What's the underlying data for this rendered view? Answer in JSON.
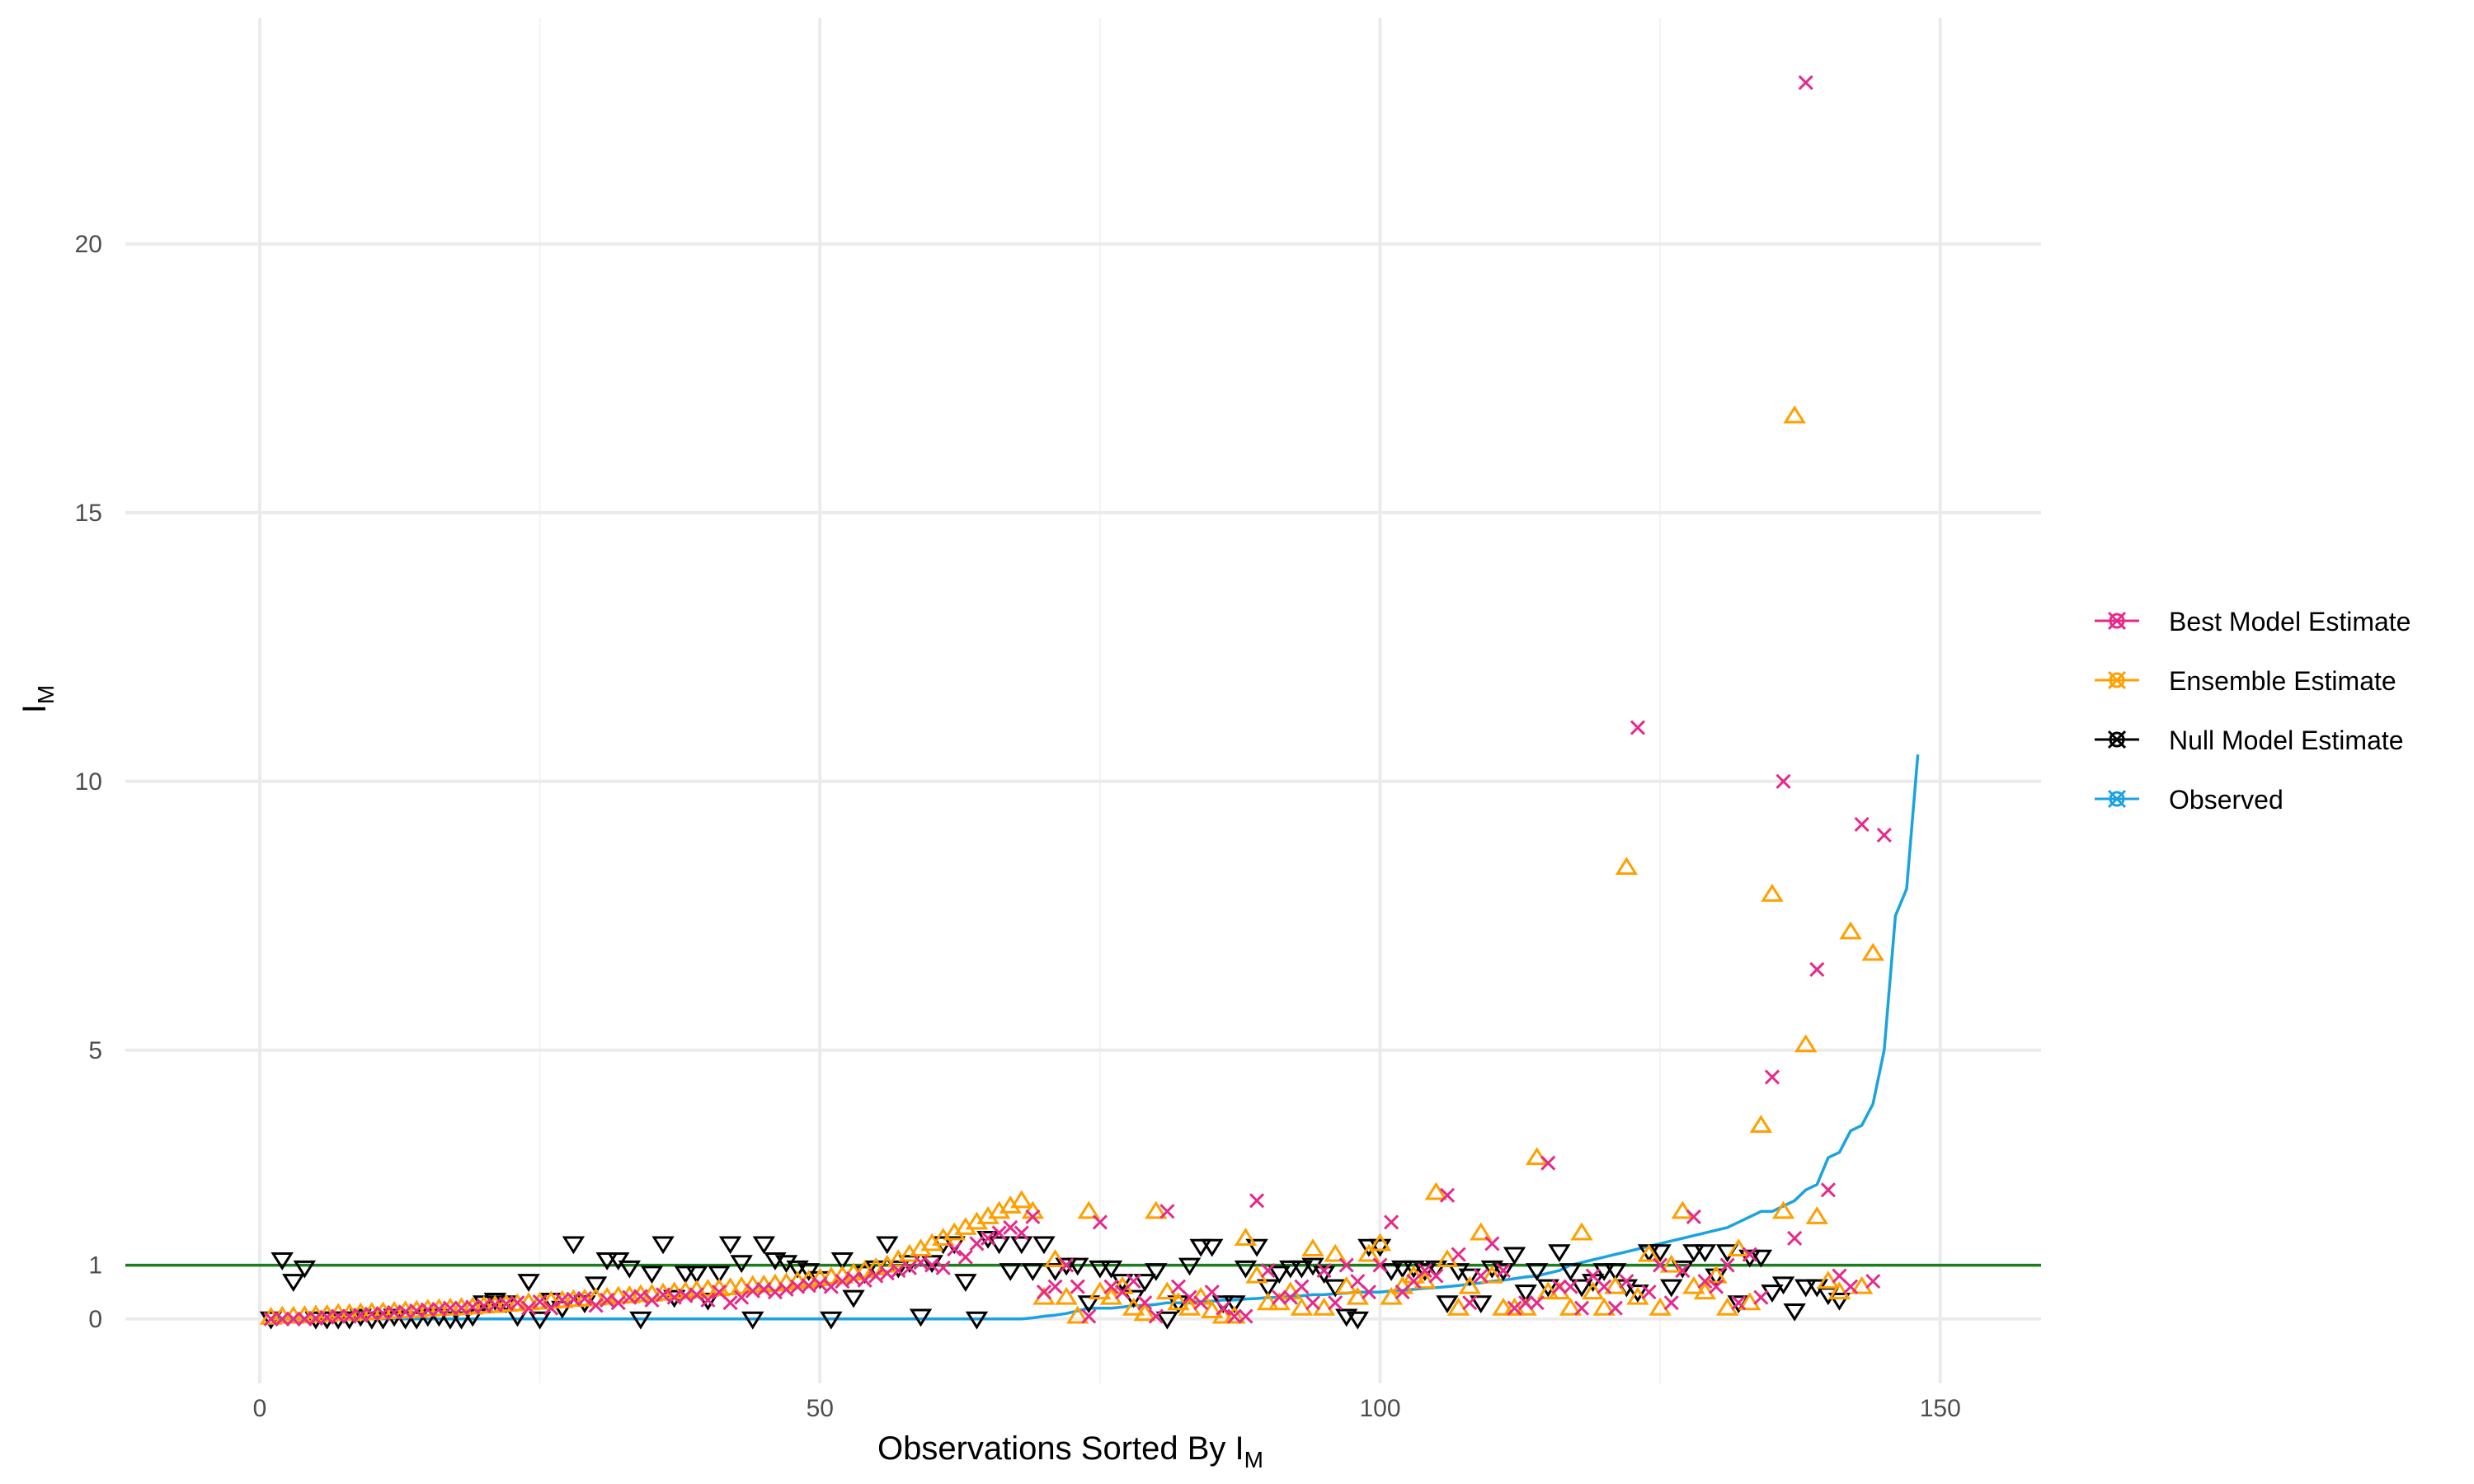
{
  "chart_data": {
    "type": "scatter",
    "xlabel": "Observations Sorted By I",
    "xlabel_subscript": "M",
    "ylabel": "I",
    "ylabel_subscript": "M",
    "xlim": [
      -12,
      159
    ],
    "ylim": [
      -1.2,
      24.2
    ],
    "xticks": [
      0,
      50,
      100,
      150
    ],
    "yticks": [
      0,
      1,
      5,
      10,
      15,
      20
    ],
    "grid": true,
    "legend_position": "right",
    "reference_line": {
      "y": 1,
      "color": "#1a7f1a"
    },
    "colors": {
      "best": "#e7298a",
      "ensemble": "#ff9f00",
      "null": "#000000",
      "observed": "#1aa3e0"
    },
    "series": [
      {
        "name": "Best Model Estimate",
        "marker": "x",
        "color": "#e7298a",
        "values": [
          0,
          0,
          0,
          0,
          0.01,
          0.03,
          0.05,
          0.05,
          0.07,
          0.09,
          0.1,
          0.12,
          0.13,
          0.15,
          0.17,
          0.18,
          0.2,
          0.2,
          0.22,
          0.24,
          0.26,
          0.28,
          0.3,
          0.2,
          0.32,
          0.2,
          0.35,
          0.37,
          0.38,
          0.25,
          0.35,
          0.3,
          0.4,
          0.42,
          0.35,
          0.45,
          0.4,
          0.43,
          0.45,
          0.35,
          0.5,
          0.3,
          0.4,
          0.52,
          0.55,
          0.5,
          0.55,
          0.6,
          0.62,
          0.65,
          0.6,
          0.7,
          0.75,
          0.72,
          0.8,
          0.85,
          0.9,
          0.95,
          1.05,
          1.0,
          0.95,
          1.3,
          1.15,
          1.4,
          1.5,
          1.6,
          1.7,
          1.6,
          1.9,
          0.5,
          0.6,
          1.0,
          0.6,
          0.05,
          1.8,
          0.6,
          0.5,
          0.7,
          0.3,
          0.05,
          2.0,
          0.6,
          0.4,
          0.3,
          0.5,
          0.2,
          0.05,
          0.05,
          2.2,
          0.9,
          0.4,
          0.4,
          0.6,
          0.3,
          0.9,
          0.3,
          1.0,
          0.7,
          0.5,
          1.0,
          1.8,
          0.5,
          0.7,
          0.9,
          0.8,
          2.3,
          1.2,
          0.3,
          0.8,
          1.4,
          0.9,
          0.2,
          0.3,
          0.3,
          2.9,
          0.6,
          0.6,
          0.2,
          0.8,
          0.6,
          0.2,
          0.7,
          11.0,
          0.5,
          1.0,
          0.3,
          0.9,
          1.9,
          0.7,
          0.6,
          1.0,
          0.3,
          1.2,
          0.4,
          4.5,
          10.0,
          1.5,
          23.0,
          6.5,
          2.4,
          0.8,
          0.6,
          9.2,
          0.7,
          9.0
        ]
      },
      {
        "name": "Ensemble Estimate",
        "marker": "triangle-up",
        "color": "#ff9f00",
        "values": [
          0.03,
          0.05,
          0.05,
          0.06,
          0.07,
          0.08,
          0.1,
          0.1,
          0.11,
          0.12,
          0.13,
          0.14,
          0.15,
          0.16,
          0.18,
          0.19,
          0.2,
          0.21,
          0.22,
          0.24,
          0.25,
          0.27,
          0.28,
          0.3,
          0.31,
          0.33,
          0.34,
          0.36,
          0.37,
          0.39,
          0.4,
          0.42,
          0.43,
          0.45,
          0.46,
          0.48,
          0.5,
          0.51,
          0.53,
          0.55,
          0.56,
          0.58,
          0.6,
          0.62,
          0.63,
          0.65,
          0.67,
          0.7,
          0.72,
          0.75,
          0.78,
          0.8,
          0.85,
          0.9,
          0.95,
          1.0,
          1.1,
          1.2,
          1.3,
          1.4,
          1.5,
          1.6,
          1.7,
          1.8,
          1.9,
          2.0,
          2.1,
          2.2,
          2.0,
          0.4,
          1.1,
          0.4,
          0.05,
          2.0,
          0.5,
          0.4,
          0.6,
          0.2,
          0.1,
          2.0,
          0.5,
          0.3,
          0.2,
          0.4,
          0.15,
          0.05,
          0.05,
          1.5,
          0.8,
          0.3,
          0.3,
          0.5,
          0.2,
          1.3,
          0.2,
          1.2,
          0.6,
          0.4,
          1.2,
          1.4,
          0.4,
          0.6,
          0.8,
          0.7,
          2.35,
          1.1,
          0.2,
          0.6,
          1.6,
          0.8,
          0.2,
          0.2,
          0.2,
          3.0,
          0.5,
          0.5,
          0.2,
          1.6,
          0.5,
          0.2,
          0.6,
          8.4,
          0.4,
          1.2,
          0.2,
          1.0,
          2.0,
          0.6,
          0.5,
          0.8,
          0.2,
          1.3,
          0.3,
          3.6,
          7.9,
          2.0,
          16.8,
          5.1,
          1.9,
          0.7,
          0.5,
          7.2,
          0.6,
          6.8
        ]
      },
      {
        "name": "Null Model Estimate",
        "marker": "triangle-down",
        "color": "#000000",
        "values": [
          0,
          1.1,
          0.7,
          0.95,
          0,
          0,
          0,
          0,
          0.05,
          0,
          0,
          0.05,
          0,
          0,
          0.05,
          0.05,
          0,
          0,
          0.05,
          0.3,
          0.35,
          0.3,
          0.05,
          0.7,
          0,
          0.35,
          0.2,
          1.4,
          0.3,
          0.65,
          1.1,
          1.1,
          0.95,
          0,
          0.85,
          1.4,
          0.4,
          0.85,
          0.85,
          0.35,
          0.85,
          1.4,
          1.05,
          0,
          1.4,
          1.1,
          1.05,
          0.95,
          0.9,
          0.75,
          0,
          1.1,
          0.4,
          0.85,
          0.95,
          1.4,
          0.95,
          1.05,
          0.05,
          1.05,
          1.4,
          1.4,
          0.7,
          0,
          1.5,
          1.4,
          0.9,
          1.4,
          0.9,
          1.4,
          0.9,
          1.0,
          1.0,
          0.3,
          0.95,
          0.95,
          0.7,
          0.4,
          0.7,
          0.9,
          0,
          0.3,
          1.0,
          1.35,
          1.35,
          0.3,
          0.3,
          0.95,
          1.35,
          0.6,
          0.85,
          0.95,
          0.95,
          1.0,
          0.85,
          0.6,
          0.05,
          0,
          1.35,
          1.35,
          0.9,
          0.95,
          0.95,
          0.9,
          0.95,
          0.3,
          0.9,
          0.8,
          0.3,
          0.95,
          0.9,
          1.2,
          0.5,
          0.9,
          0.6,
          1.25,
          0.9,
          0.6,
          0.7,
          0.9,
          0.9,
          0.6,
          0.5,
          1.25,
          1.25,
          0.6,
          0.95,
          1.25,
          1.25,
          0.8,
          1.25,
          0.3,
          1.15,
          1.15,
          0.5,
          0.65,
          0.15,
          0.6,
          0.6,
          0.45,
          0.35
        ]
      },
      {
        "name": "Observed",
        "marker": "line",
        "color": "#1aa3e0",
        "values": [
          0,
          0,
          0,
          0,
          0,
          0,
          0,
          0,
          0,
          0,
          0,
          0,
          0,
          0,
          0,
          0,
          0,
          0,
          0,
          0,
          0,
          0,
          0,
          0,
          0,
          0,
          0,
          0,
          0,
          0,
          0,
          0,
          0,
          0,
          0,
          0,
          0,
          0,
          0,
          0,
          0,
          0,
          0,
          0,
          0,
          0,
          0,
          0,
          0,
          0,
          0,
          0,
          0,
          0,
          0,
          0,
          0,
          0,
          0,
          0,
          0,
          0,
          0,
          0,
          0,
          0,
          0,
          0,
          0.02,
          0.05,
          0.07,
          0.1,
          0.15,
          0.2,
          0.2,
          0.2,
          0.22,
          0.25,
          0.25,
          0.27,
          0.3,
          0.3,
          0.3,
          0.32,
          0.33,
          0.35,
          0.35,
          0.37,
          0.38,
          0.4,
          0.4,
          0.42,
          0.43,
          0.45,
          0.45,
          0.47,
          0.48,
          0.5,
          0.5,
          0.5,
          0.52,
          0.53,
          0.55,
          0.57,
          0.58,
          0.6,
          0.62,
          0.65,
          0.67,
          0.7,
          0.72,
          0.75,
          0.78,
          0.8,
          0.85,
          0.9,
          1.0,
          1.05,
          1.1,
          1.15,
          1.2,
          1.25,
          1.3,
          1.35,
          1.4,
          1.45,
          1.5,
          1.55,
          1.6,
          1.65,
          1.7,
          1.8,
          1.9,
          2.0,
          2.0,
          2.1,
          2.2,
          2.4,
          2.5,
          3.0,
          3.1,
          3.5,
          3.6,
          4.0,
          5.0,
          7.5,
          8.0,
          10.5
        ]
      }
    ]
  }
}
